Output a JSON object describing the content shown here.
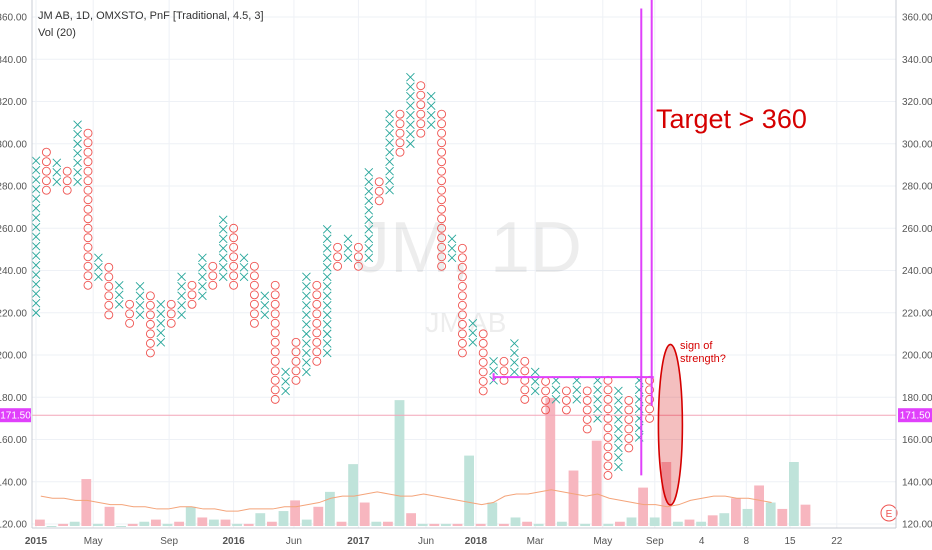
{
  "header": {
    "title": "JM AB, 1D, OMXSTO, PnF [Traditional, 4.5, 3]",
    "indicator": "Vol (20)"
  },
  "watermark": {
    "symbol": "JM, 1D",
    "name": "JM AB"
  },
  "price_badge": {
    "left": "171.50",
    "right": "171.50"
  },
  "logo_letter": "E",
  "annotations": {
    "target_text": "Target > 360",
    "sign_text_line1": "sign of",
    "sign_text_line2": "strength?"
  },
  "colors": {
    "up": "#26a69a",
    "down": "#ef5350",
    "up_vol": "#bfe3da",
    "down_vol": "#f7b6bf",
    "magenta": "#e040fb",
    "annotation": "#d50000",
    "ma": "#f4a47a"
  },
  "chart_data": {
    "type": "pnf",
    "box_size": 4.5,
    "reversal": 3,
    "ylim": [
      118,
      366
    ],
    "y_ticks": [
      "120.00",
      "140.00",
      "160.00",
      "180.00",
      "200.00",
      "220.00",
      "240.00",
      "260.00",
      "280.00",
      "300.00",
      "320.00",
      "340.00",
      "360.00"
    ],
    "x_labels": [
      {
        "label": "2015",
        "bold": true,
        "pos": 0.0
      },
      {
        "label": "May",
        "bold": false,
        "pos": 5.5
      },
      {
        "label": "Sep",
        "bold": false,
        "pos": 12.8
      },
      {
        "label": "2016",
        "bold": true,
        "pos": 19.0
      },
      {
        "label": "Jun",
        "bold": false,
        "pos": 24.8
      },
      {
        "label": "2017",
        "bold": true,
        "pos": 31.0
      },
      {
        "label": "Jun",
        "bold": false,
        "pos": 37.5
      },
      {
        "label": "2018",
        "bold": true,
        "pos": 42.3
      },
      {
        "label": "Mar",
        "bold": false,
        "pos": 48.0
      },
      {
        "label": "May",
        "bold": false,
        "pos": 54.5
      },
      {
        "label": "Sep",
        "bold": false,
        "pos": 59.5
      },
      {
        "label": "4",
        "bold": false,
        "pos": 64.0
      },
      {
        "label": "8",
        "bold": false,
        "pos": 68.3
      },
      {
        "label": "15",
        "bold": false,
        "pos": 72.5
      },
      {
        "label": "22",
        "bold": false,
        "pos": 77.0
      }
    ],
    "price_line": 171.5,
    "columns": [
      {
        "t": "X",
        "lo": 220,
        "hi": 296
      },
      {
        "t": "O",
        "lo": 278,
        "hi": 296
      },
      {
        "t": "X",
        "lo": 282,
        "hi": 291
      },
      {
        "t": "O",
        "lo": 278,
        "hi": 287
      },
      {
        "t": "X",
        "lo": 282,
        "hi": 309
      },
      {
        "t": "O",
        "lo": 233,
        "hi": 305
      },
      {
        "t": "X",
        "lo": 237,
        "hi": 246
      },
      {
        "t": "O",
        "lo": 219,
        "hi": 242
      },
      {
        "t": "X",
        "lo": 224,
        "hi": 233
      },
      {
        "t": "O",
        "lo": 215,
        "hi": 228
      },
      {
        "t": "X",
        "lo": 219,
        "hi": 233
      },
      {
        "t": "O",
        "lo": 201,
        "hi": 228
      },
      {
        "t": "X",
        "lo": 206,
        "hi": 228
      },
      {
        "t": "O",
        "lo": 215,
        "hi": 228
      },
      {
        "t": "X",
        "lo": 219,
        "hi": 237
      },
      {
        "t": "O",
        "lo": 224,
        "hi": 233
      },
      {
        "t": "X",
        "lo": 228,
        "hi": 246
      },
      {
        "t": "O",
        "lo": 233,
        "hi": 242
      },
      {
        "t": "X",
        "lo": 237,
        "hi": 264
      },
      {
        "t": "O",
        "lo": 233,
        "hi": 260
      },
      {
        "t": "X",
        "lo": 237,
        "hi": 246
      },
      {
        "t": "O",
        "lo": 215,
        "hi": 242
      },
      {
        "t": "X",
        "lo": 219,
        "hi": 228
      },
      {
        "t": "O",
        "lo": 179,
        "hi": 233
      },
      {
        "t": "X",
        "lo": 183,
        "hi": 192
      },
      {
        "t": "O",
        "lo": 188,
        "hi": 206
      },
      {
        "t": "X",
        "lo": 192,
        "hi": 237
      },
      {
        "t": "O",
        "lo": 197,
        "hi": 233
      },
      {
        "t": "X",
        "lo": 201,
        "hi": 260
      },
      {
        "t": "O",
        "lo": 242,
        "hi": 255
      },
      {
        "t": "X",
        "lo": 246,
        "hi": 255
      },
      {
        "t": "O",
        "lo": 242,
        "hi": 251
      },
      {
        "t": "X",
        "lo": 246,
        "hi": 287
      },
      {
        "t": "O",
        "lo": 273,
        "hi": 282
      },
      {
        "t": "X",
        "lo": 278,
        "hi": 318
      },
      {
        "t": "O",
        "lo": 296,
        "hi": 314
      },
      {
        "t": "X",
        "lo": 300,
        "hi": 332
      },
      {
        "t": "O",
        "lo": 305,
        "hi": 328
      },
      {
        "t": "X",
        "lo": 309,
        "hi": 323
      },
      {
        "t": "O",
        "lo": 242,
        "hi": 318
      },
      {
        "t": "X",
        "lo": 246,
        "hi": 255
      },
      {
        "t": "O",
        "lo": 201,
        "hi": 251
      },
      {
        "t": "X",
        "lo": 206,
        "hi": 215
      },
      {
        "t": "O",
        "lo": 183,
        "hi": 210
      },
      {
        "t": "X",
        "lo": 188,
        "hi": 201
      },
      {
        "t": "O",
        "lo": 188,
        "hi": 197
      },
      {
        "t": "X",
        "lo": 192,
        "hi": 206
      },
      {
        "t": "O",
        "lo": 179,
        "hi": 201
      },
      {
        "t": "X",
        "lo": 183,
        "hi": 192
      },
      {
        "t": "O",
        "lo": 174,
        "hi": 188
      },
      {
        "t": "X",
        "lo": 179,
        "hi": 188
      },
      {
        "t": "O",
        "lo": 174,
        "hi": 183
      },
      {
        "t": "X",
        "lo": 179,
        "hi": 188
      },
      {
        "t": "O",
        "lo": 165,
        "hi": 183
      },
      {
        "t": "X",
        "lo": 170,
        "hi": 192
      },
      {
        "t": "O",
        "lo": 143,
        "hi": 188
      },
      {
        "t": "X",
        "lo": 147,
        "hi": 183
      },
      {
        "t": "O",
        "lo": 156,
        "hi": 179
      },
      {
        "t": "X",
        "lo": 161,
        "hi": 188
      },
      {
        "t": "O",
        "lo": 170,
        "hi": 188
      }
    ],
    "volume": {
      "ylim": [
        120,
        180
      ],
      "bars": [
        {
          "c": "down",
          "v": 123
        },
        {
          "c": "up",
          "v": 120
        },
        {
          "c": "down",
          "v": 121
        },
        {
          "c": "up",
          "v": 122
        },
        {
          "c": "down",
          "v": 142
        },
        {
          "c": "up",
          "v": 121
        },
        {
          "c": "down",
          "v": 129
        },
        {
          "c": "up",
          "v": 120
        },
        {
          "c": "down",
          "v": 121
        },
        {
          "c": "up",
          "v": 122
        },
        {
          "c": "down",
          "v": 123
        },
        {
          "c": "up",
          "v": 121
        },
        {
          "c": "down",
          "v": 122
        },
        {
          "c": "up",
          "v": 129
        },
        {
          "c": "down",
          "v": 124
        },
        {
          "c": "up",
          "v": 123
        },
        {
          "c": "down",
          "v": 123
        },
        {
          "c": "up",
          "v": 121
        },
        {
          "c": "down",
          "v": 121
        },
        {
          "c": "up",
          "v": 126
        },
        {
          "c": "down",
          "v": 122
        },
        {
          "c": "up",
          "v": 127
        },
        {
          "c": "down",
          "v": 132
        },
        {
          "c": "up",
          "v": 123
        },
        {
          "c": "down",
          "v": 129
        },
        {
          "c": "up",
          "v": 136
        },
        {
          "c": "down",
          "v": 122
        },
        {
          "c": "up",
          "v": 149
        },
        {
          "c": "down",
          "v": 131
        },
        {
          "c": "up",
          "v": 122
        },
        {
          "c": "down",
          "v": 122
        },
        {
          "c": "up",
          "v": 179
        },
        {
          "c": "down",
          "v": 126
        },
        {
          "c": "up",
          "v": 121
        },
        {
          "c": "down",
          "v": 121
        },
        {
          "c": "up",
          "v": 121
        },
        {
          "c": "down",
          "v": 121
        },
        {
          "c": "up",
          "v": 153
        },
        {
          "c": "down",
          "v": 121
        },
        {
          "c": "up",
          "v": 131
        },
        {
          "c": "down",
          "v": 121
        },
        {
          "c": "up",
          "v": 124
        },
        {
          "c": "down",
          "v": 122
        },
        {
          "c": "up",
          "v": 121
        },
        {
          "c": "down",
          "v": 180
        },
        {
          "c": "up",
          "v": 122
        },
        {
          "c": "down",
          "v": 146
        },
        {
          "c": "up",
          "v": 121
        },
        {
          "c": "down",
          "v": 160
        },
        {
          "c": "up",
          "v": 121
        },
        {
          "c": "down",
          "v": 122
        },
        {
          "c": "up",
          "v": 124
        },
        {
          "c": "down",
          "v": 138
        },
        {
          "c": "up",
          "v": 124
        },
        {
          "c": "down",
          "v": 150
        },
        {
          "c": "up",
          "v": 122
        },
        {
          "c": "down",
          "v": 123
        },
        {
          "c": "up",
          "v": 122
        },
        {
          "c": "down",
          "v": 125
        },
        {
          "c": "up",
          "v": 126
        },
        {
          "c": "down",
          "v": 133
        },
        {
          "c": "up",
          "v": 128
        },
        {
          "c": "down",
          "v": 139
        },
        {
          "c": "up",
          "v": 131
        },
        {
          "c": "down",
          "v": 128
        },
        {
          "c": "up",
          "v": 150
        },
        {
          "c": "down",
          "v": 130
        }
      ],
      "ma": [
        134,
        133,
        133,
        132,
        132,
        131,
        130,
        130,
        129,
        129,
        128,
        128,
        129,
        129,
        128,
        128,
        127,
        127,
        128,
        128,
        128,
        129,
        129,
        130,
        131,
        133,
        134,
        134,
        135,
        136,
        135,
        134,
        134,
        135,
        134,
        133,
        132,
        131,
        130,
        131,
        134,
        135,
        135,
        136,
        137,
        136,
        135,
        134,
        135,
        133,
        132,
        131,
        130,
        130,
        129,
        130,
        132,
        133,
        134,
        134,
        133,
        133,
        132,
        131
      ]
    }
  }
}
